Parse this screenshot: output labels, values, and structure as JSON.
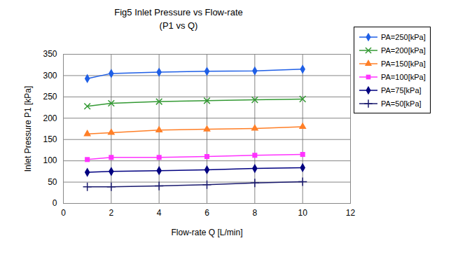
{
  "chart_data": {
    "type": "line",
    "title": "Fig5 Inlet Pressure vs Flow-rate",
    "subtitle": "(P1 vs Q)",
    "x_label": "Flow-rate Q [L/min]",
    "y_label": "Inlet Pressure P1 [kPa]",
    "x": [
      1,
      2,
      4,
      6,
      8,
      10
    ],
    "series": [
      {
        "name": "PA=250[kPa]",
        "color": "#1f5fe6",
        "marker": "diamond",
        "values": [
          293,
          305,
          308,
          310,
          311,
          315
        ]
      },
      {
        "name": "PA=200[kPa]",
        "color": "#339933",
        "marker": "times",
        "values": [
          228,
          235,
          239,
          241,
          243,
          245
        ]
      },
      {
        "name": "PA=150[kPa]",
        "color": "#ff7f27",
        "marker": "triangle",
        "values": [
          163,
          166,
          172,
          174,
          176,
          180
        ]
      },
      {
        "name": "PA=100[kPa]",
        "color": "#ff33ff",
        "marker": "square",
        "values": [
          103,
          108,
          108,
          110,
          113,
          115
        ]
      },
      {
        "name": "PA=75[kPa]",
        "color": "#000080",
        "marker": "diamond",
        "values": [
          73,
          75,
          77,
          79,
          82,
          84
        ]
      },
      {
        "name": "PA=50[kPa]",
        "color": "#1a1a6e",
        "marker": "plus",
        "values": [
          39,
          39,
          41,
          44,
          48,
          51
        ]
      }
    ],
    "xlim": [
      0,
      12
    ],
    "xticks": [
      0,
      2,
      4,
      6,
      8,
      10,
      12
    ],
    "ylim": [
      0,
      350
    ],
    "yticks": [
      0,
      50,
      100,
      150,
      200,
      250,
      300,
      350
    ],
    "grid": true,
    "legend": "right"
  }
}
